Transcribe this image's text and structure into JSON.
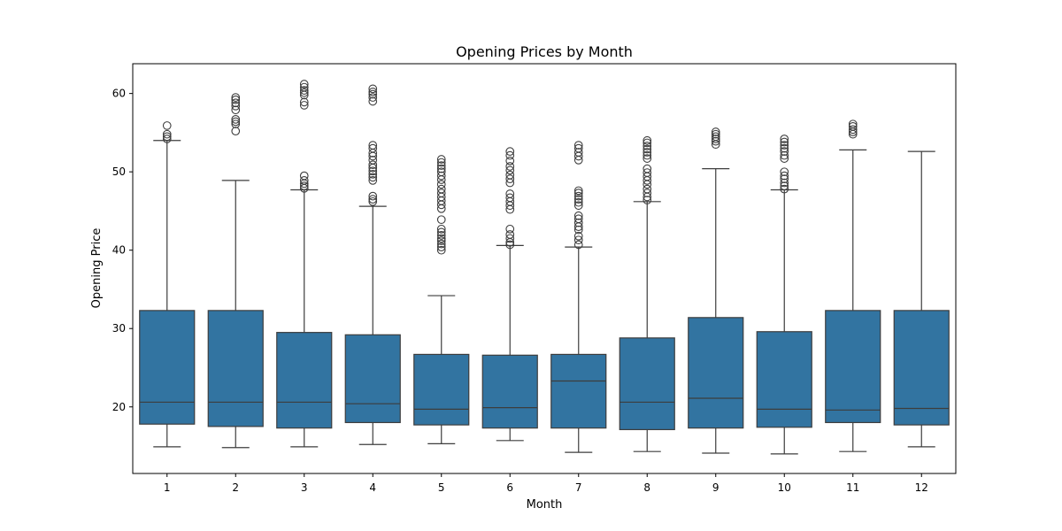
{
  "chart_data": {
    "type": "box",
    "title": "Opening Prices by Month",
    "xlabel": "Month",
    "ylabel": "Opening Price",
    "ylim": [
      11.5,
      63.8
    ],
    "yticks": [
      20,
      30,
      40,
      50,
      60
    ],
    "grid": false,
    "colors": {
      "box": "#3274a1",
      "line": "#3d3d3d"
    },
    "categories": [
      "1",
      "2",
      "3",
      "4",
      "5",
      "6",
      "7",
      "8",
      "9",
      "10",
      "11",
      "12"
    ],
    "boxes": [
      {
        "whisker_low": 14.9,
        "q1": 17.8,
        "median": 20.6,
        "q3": 32.3,
        "whisker_high": 54.0,
        "outliers": [
          54.2,
          54.5,
          54.8,
          55.9
        ]
      },
      {
        "whisker_low": 14.8,
        "q1": 17.5,
        "median": 20.6,
        "q3": 32.3,
        "whisker_high": 48.9,
        "outliers": [
          55.2,
          56.1,
          56.4,
          56.7,
          57.9,
          58.4,
          58.8,
          59.2,
          59.5
        ]
      },
      {
        "whisker_low": 14.9,
        "q1": 17.3,
        "median": 20.6,
        "q3": 29.5,
        "whisker_high": 47.7,
        "outliers": [
          47.9,
          48.2,
          48.5,
          48.9,
          49.5,
          58.5,
          58.9,
          59.8,
          60.1,
          60.4,
          60.8,
          61.2
        ]
      },
      {
        "whisker_low": 15.2,
        "q1": 18.0,
        "median": 20.4,
        "q3": 29.2,
        "whisker_high": 45.6,
        "outliers": [
          46.2,
          46.5,
          46.9,
          48.9,
          49.3,
          49.7,
          50.1,
          50.5,
          50.9,
          51.5,
          52.0,
          52.4,
          53.0,
          53.4,
          59.0,
          59.5,
          59.9,
          60.2,
          60.6
        ]
      },
      {
        "whisker_low": 15.3,
        "q1": 17.7,
        "median": 19.7,
        "q3": 26.7,
        "whisker_high": 34.2,
        "outliers": [
          40.0,
          40.4,
          40.8,
          41.2,
          41.5,
          41.9,
          42.3,
          42.7,
          43.9,
          45.3,
          45.8,
          46.3,
          46.8,
          47.3,
          47.8,
          48.4,
          49.0,
          49.5,
          50.0,
          50.4,
          50.8,
          51.2,
          51.6
        ]
      },
      {
        "whisker_low": 15.7,
        "q1": 17.3,
        "median": 19.9,
        "q3": 26.6,
        "whisker_high": 40.6,
        "outliers": [
          40.7,
          41.0,
          41.5,
          42.0,
          42.7,
          45.2,
          45.7,
          46.2,
          46.7,
          47.2,
          48.6,
          49.1,
          49.6,
          50.2,
          50.7,
          51.4,
          52.1,
          52.6
        ]
      },
      {
        "whisker_low": 14.2,
        "q1": 17.3,
        "median": 23.3,
        "q3": 26.7,
        "whisker_high": 40.4,
        "outliers": [
          40.7,
          41.3,
          41.8,
          42.6,
          43.0,
          43.5,
          44.0,
          44.4,
          45.7,
          46.1,
          46.5,
          46.9,
          47.3,
          47.6,
          51.5,
          52.0,
          52.5,
          53.0,
          53.4
        ]
      },
      {
        "whisker_low": 14.3,
        "q1": 17.1,
        "median": 20.6,
        "q3": 28.8,
        "whisker_high": 46.2,
        "outliers": [
          46.4,
          46.8,
          47.3,
          47.8,
          48.4,
          48.9,
          49.4,
          49.9,
          50.4,
          51.7,
          52.1,
          52.5,
          52.9,
          53.3,
          53.7,
          54.0
        ]
      },
      {
        "whisker_low": 14.1,
        "q1": 17.3,
        "median": 21.1,
        "q3": 31.4,
        "whisker_high": 50.4,
        "outliers": [
          53.5,
          53.9,
          54.2,
          54.5,
          54.8,
          55.1
        ]
      },
      {
        "whisker_low": 14.0,
        "q1": 17.4,
        "median": 19.7,
        "q3": 29.6,
        "whisker_high": 47.7,
        "outliers": [
          47.8,
          48.2,
          48.6,
          49.1,
          49.5,
          50.0,
          51.7,
          52.1,
          52.6,
          53.0,
          53.4,
          53.8,
          54.2
        ]
      },
      {
        "whisker_low": 14.3,
        "q1": 18.0,
        "median": 19.6,
        "q3": 32.3,
        "whisker_high": 52.8,
        "outliers": [
          54.8,
          55.1,
          55.4,
          55.8,
          56.1
        ]
      },
      {
        "whisker_low": 14.9,
        "q1": 17.7,
        "median": 19.8,
        "q3": 32.3,
        "whisker_high": 52.6,
        "outliers": []
      }
    ]
  }
}
